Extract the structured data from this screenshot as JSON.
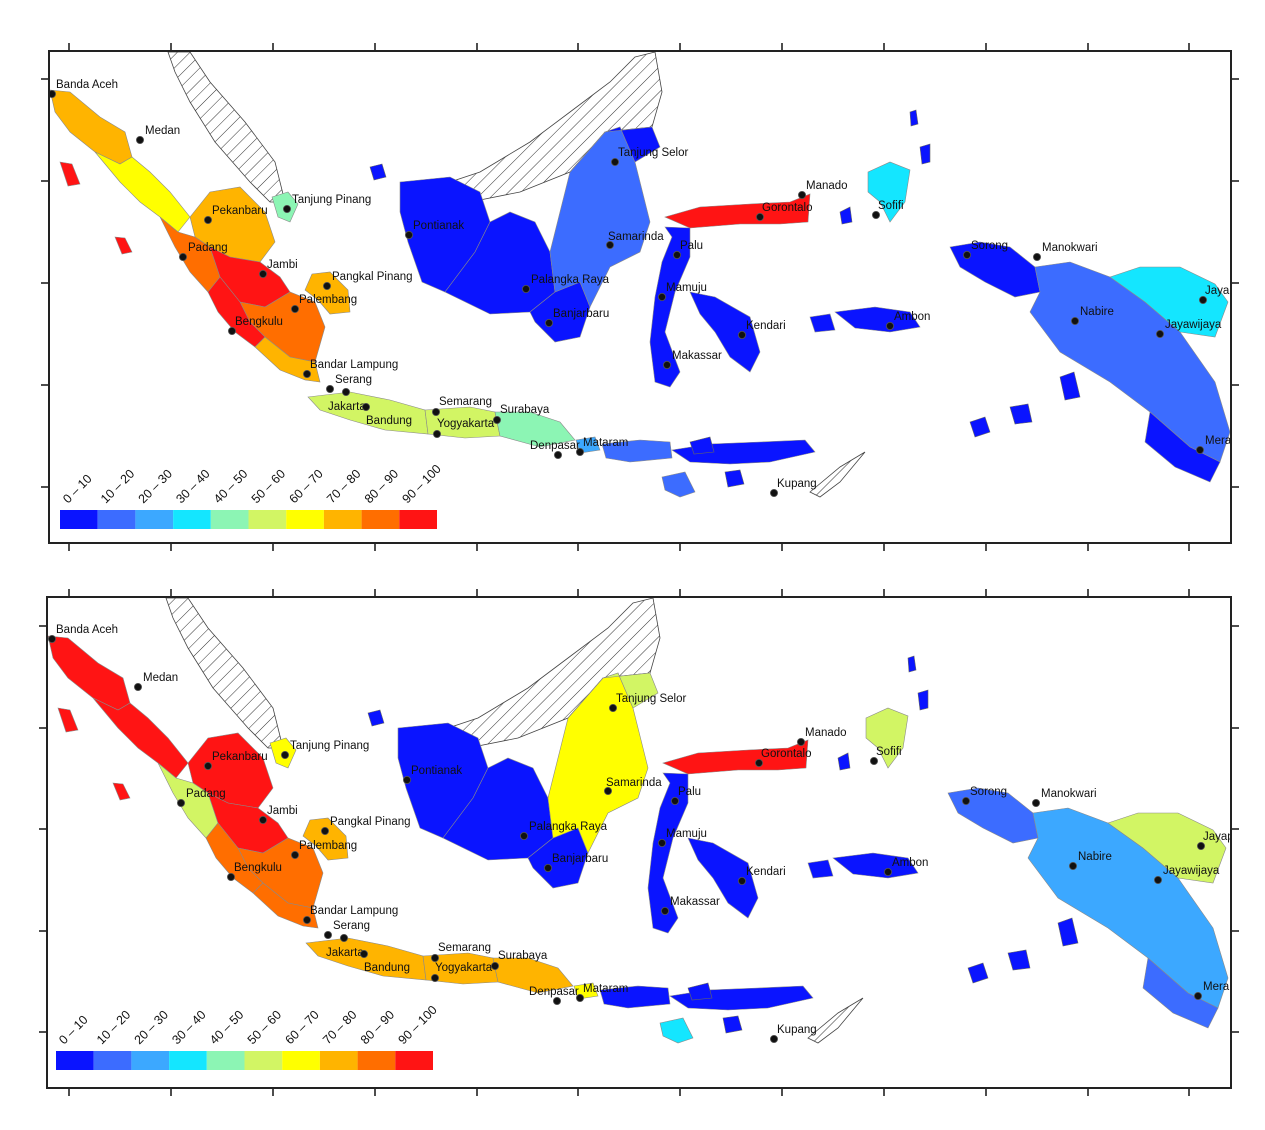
{
  "legend": {
    "bins": [
      "0 – 10",
      "10 – 20",
      "20 – 30",
      "30 – 40",
      "40 – 50",
      "50 – 60",
      "60 – 70",
      "70 – 80",
      "80 – 90",
      "90 – 100"
    ],
    "colors": [
      "#0a14ff",
      "#3c6cff",
      "#3ca8ff",
      "#14e6ff",
      "#8cf5b4",
      "#d2f564",
      "#ffff00",
      "#ffb400",
      "#ff6e00",
      "#ff1414"
    ]
  },
  "cities": [
    "Banda Aceh",
    "Medan",
    "Pekanbaru",
    "Tanjung Pinang",
    "Padang",
    "Jambi",
    "Pangkal Pinang",
    "Palembang",
    "Bengkulu",
    "Bandar Lampung",
    "Serang",
    "Jakarta",
    "Bandung",
    "Semarang",
    "Surabaya",
    "Yogyakarta",
    "Denpasar",
    "Mataram",
    "Pontianak",
    "Palangka Raya",
    "Banjarbaru",
    "Samarinda",
    "Tanjung Selor",
    "Palu",
    "Mamuju",
    "Makassar",
    "Kendari",
    "Gorontalo",
    "Manado",
    "Sofifi",
    "Ambon",
    "Sorong",
    "Manokwari",
    "Nabire",
    "Jayapura",
    "Jayawijaya",
    "Merauke",
    "Kupang"
  ],
  "maps": [
    {
      "id": "top",
      "regions": {
        "aceh": 8,
        "sumut": 7,
        "riau": 8,
        "sumbar": 9,
        "jambi": 10,
        "sumsel": 9,
        "bengkulu": 10,
        "lampung": 8,
        "babel": 8,
        "kepri": 5,
        "nias": 10,
        "mentawai": 10,
        "jawa_west": 6,
        "jawa_central": 6,
        "jawa_east": 5,
        "bali": 3,
        "ntb": 2,
        "ntt": 1,
        "sumba": 2,
        "kal_west": 1,
        "kal_central": 1,
        "kal_south": 1,
        "kal_east": 2,
        "kal_north": 1,
        "sul_north": 10,
        "sul_main": 1,
        "sul_se": 1,
        "maluku_north": 4,
        "seram": 1,
        "buru": 1,
        "papua_west": 1,
        "papua_main": 2,
        "papua_north": 4,
        "papua_south": 1
      }
    },
    {
      "id": "bottom",
      "regions": {
        "aceh": 10,
        "sumut": 10,
        "riau": 10,
        "sumbar": 6,
        "jambi": 10,
        "sumsel": 9,
        "bengkulu": 9,
        "lampung": 9,
        "babel": 8,
        "kepri": 7,
        "nias": 10,
        "mentawai": 10,
        "jawa_west": 8,
        "jawa_central": 8,
        "jawa_east": 8,
        "bali": 7,
        "ntb": 1,
        "ntt": 1,
        "sumba": 4,
        "kal_west": 1,
        "kal_central": 1,
        "kal_south": 1,
        "kal_east": 7,
        "kal_north": 6,
        "sul_north": 10,
        "sul_main": 1,
        "sul_se": 1,
        "maluku_north": 6,
        "seram": 1,
        "buru": 1,
        "papua_west": 2,
        "papua_main": 3,
        "papua_north": 6,
        "papua_south": 2
      }
    }
  ]
}
